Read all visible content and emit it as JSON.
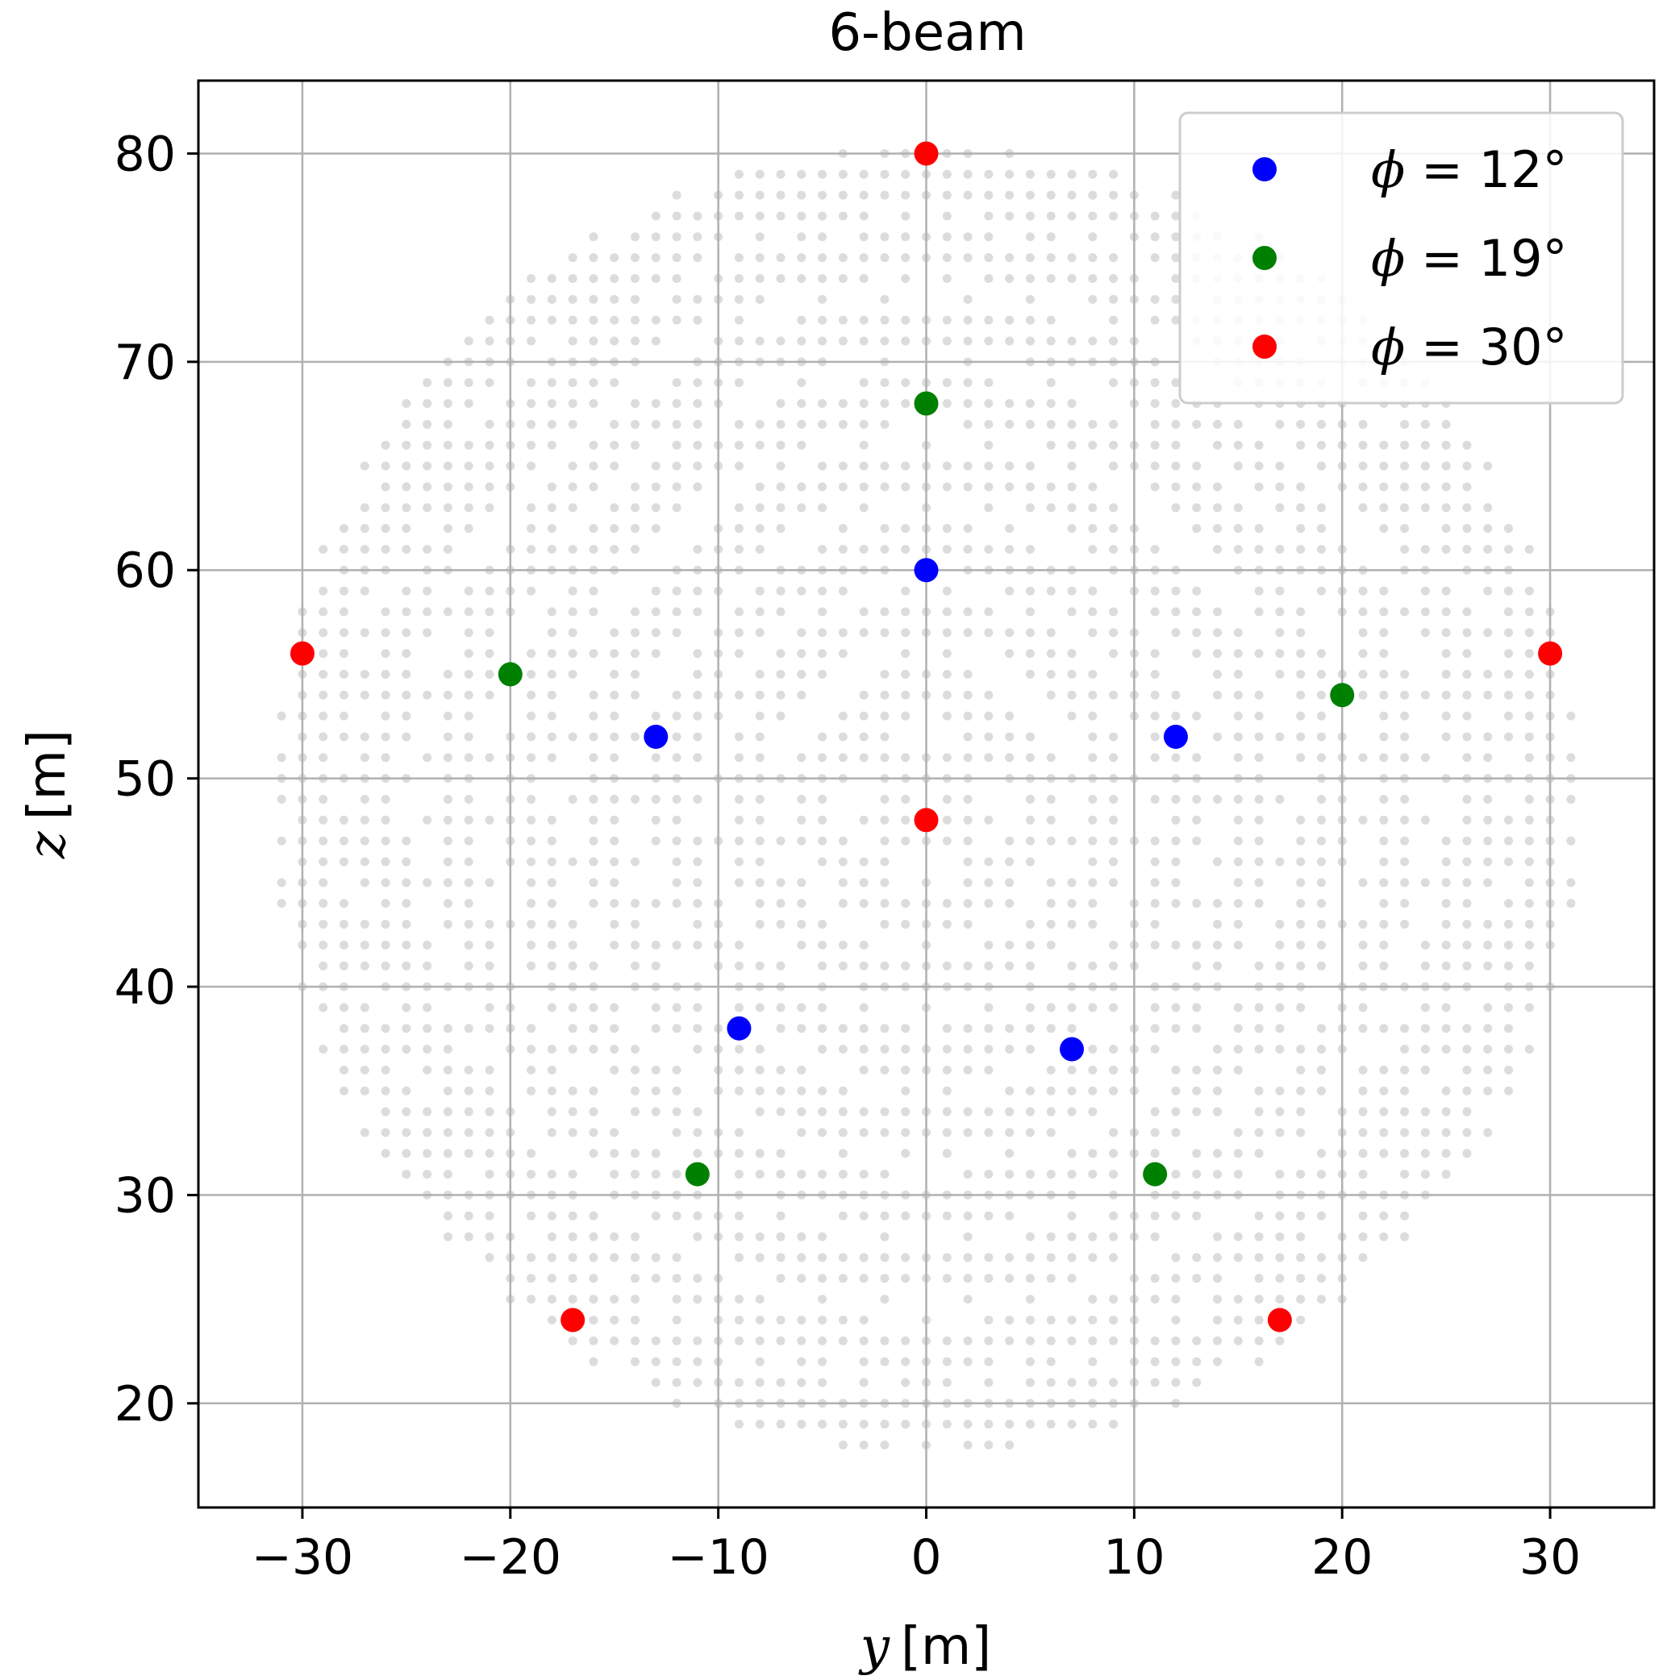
{
  "chart_data": {
    "type": "scatter",
    "title": "6-beam",
    "xlabel": {
      "var": "y",
      "unit": "[m]"
    },
    "ylabel": {
      "var": "z",
      "unit": "[m]"
    },
    "xlim": [
      -35,
      35
    ],
    "ylim": [
      15,
      83.5
    ],
    "xticks": [
      -30,
      -20,
      -10,
      0,
      10,
      20,
      30
    ],
    "xtick_labels": [
      "−30",
      "−20",
      "−10",
      "0",
      "10",
      "20",
      "30"
    ],
    "yticks": [
      20,
      30,
      40,
      50,
      60,
      70,
      80
    ],
    "ytick_labels": [
      "20",
      "30",
      "40",
      "50",
      "60",
      "70",
      "80"
    ],
    "grid": true,
    "legend": {
      "placement": "top-right"
    },
    "background_grid": {
      "color": "#dcdcdc",
      "description_note": "",
      "center": [
        0,
        49
      ],
      "radius": 31.5,
      "spacing": 1
    },
    "series": [
      {
        "name": "ϕ = 12°",
        "symbol": "ϕ",
        "op": " = ",
        "value": "12°",
        "color": "#0000ff",
        "x": [
          0,
          -13,
          12,
          -9,
          7
        ],
        "y": [
          60,
          52,
          52,
          38,
          37
        ]
      },
      {
        "name": "ϕ = 19°",
        "symbol": "ϕ",
        "op": " = ",
        "value": "19°",
        "color": "#008000",
        "x": [
          0,
          -20,
          20,
          -11,
          11
        ],
        "y": [
          68,
          55,
          54,
          31,
          31
        ]
      },
      {
        "name": "ϕ = 30°",
        "symbol": "ϕ",
        "op": " = ",
        "value": "30°",
        "color": "#ff0000",
        "x": [
          0,
          -30,
          30,
          0,
          -17,
          17
        ],
        "y": [
          80,
          56,
          56,
          48,
          24,
          24
        ]
      }
    ]
  }
}
